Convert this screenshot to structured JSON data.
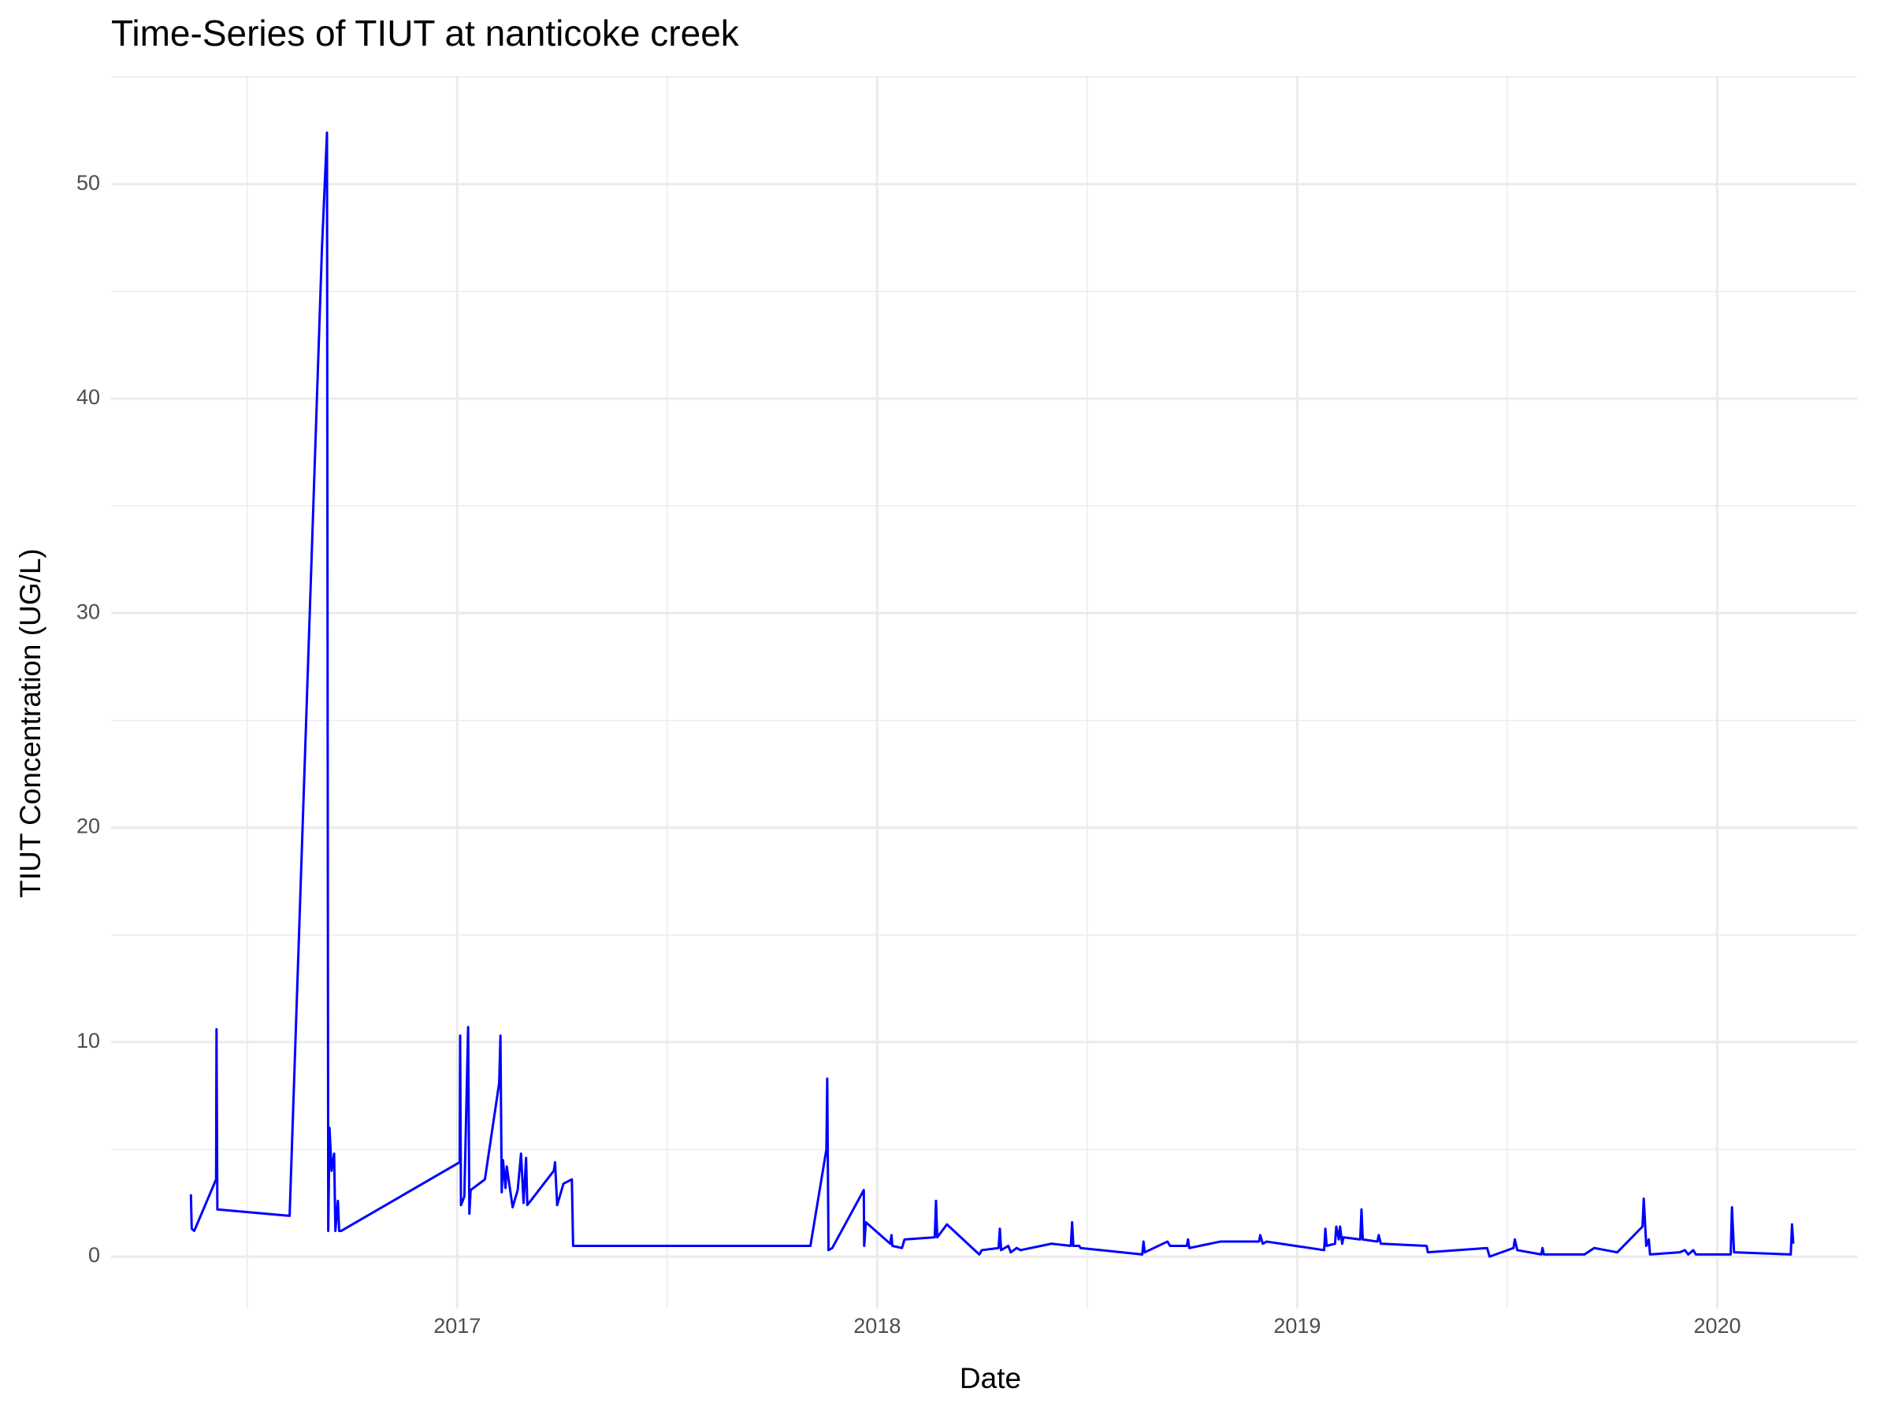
{
  "chart_data": {
    "type": "line",
    "title": "Time-Series of TIUT at nanticoke creek",
    "x_label": "Date",
    "y_label": "TIUT Concentration (UG/L)",
    "color": "#0000ff",
    "grid": true,
    "xlim": [
      2016.176,
      2020.333
    ],
    "ylim": [
      -2.42,
      55.06
    ],
    "xticks": [
      2017,
      2018,
      2019,
      2020
    ],
    "yticks": [
      0,
      10,
      20,
      30,
      40,
      50
    ],
    "xminor": [
      2016.5,
      2017.5,
      2018.5,
      2019.5
    ],
    "yminor": [
      5,
      15,
      25,
      35,
      45,
      55
    ],
    "x": [
      2016.366,
      2016.368,
      2016.374,
      2016.426,
      2016.427,
      2016.429,
      2016.601,
      2016.678,
      2016.69,
      2016.693,
      2016.696,
      2016.701,
      2016.707,
      2016.71,
      2016.716,
      2016.719,
      2016.724,
      2017.006,
      2017.007,
      2017.009,
      2017.017,
      2017.026,
      2017.029,
      2017.032,
      2017.066,
      2017.1,
      2017.103,
      2017.106,
      2017.109,
      2017.115,
      2017.118,
      2017.132,
      2017.144,
      2017.152,
      2017.158,
      2017.164,
      2017.167,
      2017.23,
      2017.233,
      2017.238,
      2017.253,
      2017.273,
      2017.276,
      2017.841,
      2017.879,
      2017.881,
      2017.884,
      2017.893,
      2017.968,
      2017.969,
      2017.973,
      2018.031,
      2018.034,
      2018.036,
      2018.059,
      2018.065,
      2018.137,
      2018.14,
      2018.143,
      2018.166,
      2018.243,
      2018.249,
      2018.289,
      2018.292,
      2018.295,
      2018.312,
      2018.318,
      2018.332,
      2018.341,
      2018.415,
      2018.461,
      2018.464,
      2018.467,
      2018.481,
      2018.484,
      2018.631,
      2018.634,
      2018.637,
      2018.691,
      2018.697,
      2018.737,
      2018.74,
      2018.743,
      2018.817,
      2018.909,
      2018.912,
      2018.918,
      2018.927,
      2019.064,
      2019.067,
      2019.07,
      2019.09,
      2019.093,
      2019.099,
      2019.102,
      2019.107,
      2019.11,
      2019.15,
      2019.153,
      2019.156,
      2019.191,
      2019.194,
      2019.199,
      2019.308,
      2019.311,
      2019.452,
      2019.458,
      2019.515,
      2019.518,
      2019.524,
      2019.581,
      2019.584,
      2019.587,
      2019.684,
      2019.707,
      2019.762,
      2019.822,
      2019.825,
      2019.831,
      2019.837,
      2019.84,
      2019.911,
      2019.923,
      2019.931,
      2019.943,
      2019.949,
      2020.032,
      2020.035,
      2020.04,
      2020.175,
      2020.178,
      2020.181
    ],
    "values": [
      2.9,
      1.3,
      1.2,
      3.6,
      10.6,
      2.2,
      1.9,
      47,
      52.4,
      1.2,
      6,
      4,
      4.8,
      1.2,
      2.6,
      1.2,
      1.2,
      4.4,
      10.3,
      2.4,
      2.8,
      10.7,
      2.0,
      3.1,
      3.6,
      8.1,
      10.3,
      3.0,
      4.5,
      3.2,
      4.2,
      2.3,
      3.1,
      4.8,
      2.5,
      4.6,
      2.4,
      4.0,
      4.4,
      2.4,
      3.4,
      3.6,
      0.5,
      0.5,
      5.0,
      8.3,
      0.3,
      0.4,
      3.1,
      0.5,
      1.6,
      0.6,
      1.0,
      0.5,
      0.4,
      0.8,
      0.9,
      2.6,
      0.9,
      1.5,
      0.1,
      0.3,
      0.4,
      1.3,
      0.3,
      0.5,
      0.2,
      0.4,
      0.3,
      0.6,
      0.5,
      1.6,
      0.5,
      0.5,
      0.4,
      0.1,
      0.7,
      0.2,
      0.7,
      0.5,
      0.5,
      0.8,
      0.4,
      0.7,
      0.7,
      1.0,
      0.6,
      0.7,
      0.3,
      1.3,
      0.5,
      0.6,
      1.4,
      0.8,
      1.4,
      0.6,
      0.9,
      0.8,
      2.2,
      0.8,
      0.7,
      1.0,
      0.6,
      0.5,
      0.2,
      0.4,
      0,
      0.4,
      0.8,
      0.3,
      0.1,
      0.4,
      0.1,
      0.1,
      0.4,
      0.2,
      1.4,
      2.7,
      0.5,
      0.8,
      0.1,
      0.2,
      0.3,
      0.1,
      0.3,
      0.1,
      0.1,
      2.3,
      0.2,
      0.1,
      1.5,
      0.6
    ]
  }
}
